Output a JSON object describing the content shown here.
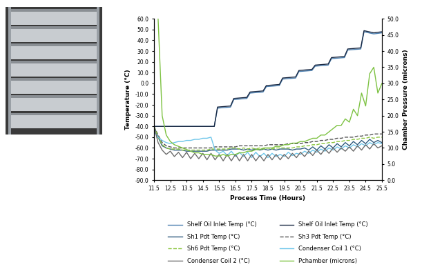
{
  "chart_data": {
    "type": "line",
    "xlabel": "Process Time (Hours)",
    "ylabel": "Temperature (°C)",
    "y2label": "Chamber Pressure (microns)",
    "xlim": [
      11.5,
      25.5
    ],
    "xticks": [
      11.5,
      12.5,
      13.5,
      14.5,
      15.5,
      16.5,
      17.5,
      18.5,
      19.5,
      20.5,
      21.5,
      22.5,
      23.5,
      24.5,
      25.5
    ],
    "ylim": [
      -90,
      60
    ],
    "yticks": [
      {
        "value": -90,
        "label": "-90.0"
      },
      {
        "value": -80,
        "label": "-80.0"
      },
      {
        "value": -70,
        "label": "-70.0"
      },
      {
        "value": -60,
        "label": "-60.0"
      },
      {
        "value": -50,
        "label": "-50.0"
      },
      {
        "value": -40,
        "label": "-40.0"
      },
      {
        "value": -30,
        "label": "-30.0"
      },
      {
        "value": -20,
        "label": "-20.0"
      },
      {
        "value": -10,
        "label": "-10.0"
      },
      {
        "value": 0,
        "label": "0.0"
      },
      {
        "value": 10,
        "label": "10.0"
      },
      {
        "value": 20,
        "label": "20.0"
      },
      {
        "value": 30,
        "label": "30.0"
      },
      {
        "value": 40,
        "label": "40.0"
      },
      {
        "value": 50,
        "label": "50.0"
      },
      {
        "value": 60,
        "label": "60.0"
      }
    ],
    "y2lim": [
      0,
      50
    ],
    "y2ticks": [
      {
        "value": 0,
        "label": "0.0"
      },
      {
        "value": 5,
        "label": "5.0"
      },
      {
        "value": 10,
        "label": "10.0"
      },
      {
        "value": 15,
        "label": "15.0"
      },
      {
        "value": 20,
        "label": "20.0"
      },
      {
        "value": 25,
        "label": "25.0"
      },
      {
        "value": 30,
        "label": "30.0"
      },
      {
        "value": 35,
        "label": "35.0"
      },
      {
        "value": 40,
        "label": "40.0"
      },
      {
        "value": 45,
        "label": "45.0"
      },
      {
        "value": 50,
        "label": "50.0"
      }
    ],
    "grid": false,
    "legend": "lower center",
    "x": [
      11.5,
      11.75,
      12.0,
      12.25,
      12.5,
      12.75,
      13.0,
      13.25,
      13.5,
      13.75,
      14.0,
      14.25,
      14.5,
      14.75,
      15.0,
      15.25,
      15.5,
      15.75,
      16.0,
      16.25,
      16.5,
      16.75,
      17.0,
      17.25,
      17.5,
      17.75,
      18.0,
      18.25,
      18.5,
      18.75,
      19.0,
      19.25,
      19.5,
      19.75,
      20.0,
      20.25,
      20.5,
      20.75,
      21.0,
      21.25,
      21.5,
      21.75,
      22.0,
      22.25,
      22.5,
      22.75,
      23.0,
      23.25,
      23.5,
      23.75,
      24.0,
      24.25,
      24.5,
      24.75,
      25.0,
      25.25,
      25.5
    ],
    "series": [
      {
        "name": "Shelf Oil Inlet Temp (°C)",
        "color": "#4a7fb0",
        "line_style": "solid",
        "x": [
          11.5,
          15.2,
          15.4,
          16.2,
          16.4,
          17.2,
          17.4,
          18.2,
          18.4,
          19.2,
          19.4,
          20.2,
          20.4,
          21.2,
          21.4,
          22.2,
          22.4,
          23.2,
          23.4,
          24.2,
          24.4,
          25.0,
          25.5
        ],
        "values": [
          -40,
          -40,
          -23,
          -22,
          -15,
          -14,
          -9,
          -8,
          -3,
          -2,
          4,
          5,
          11,
          12,
          16,
          17,
          23,
          24,
          31,
          32,
          48,
          46,
          47
        ]
      },
      {
        "name": "Shelf Oil Inlet Temp (°C)",
        "color": "#1b2a44",
        "line_style": "solid",
        "x": [
          11.5,
          15.2,
          15.4,
          16.2,
          16.4,
          17.2,
          17.4,
          18.2,
          18.4,
          19.2,
          19.4,
          20.2,
          20.4,
          21.2,
          21.4,
          22.2,
          22.4,
          23.2,
          23.4,
          24.2,
          24.4,
          25.0,
          25.5
        ],
        "values": [
          -40,
          -40,
          -22,
          -21,
          -14,
          -13,
          -8,
          -7,
          -2,
          -1,
          5,
          6,
          12,
          13,
          17,
          18,
          24,
          25,
          32,
          33,
          49,
          47,
          48
        ]
      },
      {
        "name": "Sh1 Pdt Temp (°C)",
        "color": "#2e5b7f",
        "line_style": "solid",
        "values": [
          -40,
          -50,
          -58,
          -60,
          -61,
          -62,
          -62,
          -62,
          -63,
          -63,
          -63,
          -63,
          -63,
          -63,
          -62,
          -62,
          -62,
          -62,
          -62,
          -61,
          -61,
          -61,
          -62,
          -61,
          -62,
          -61,
          -62,
          -61,
          -62,
          -61,
          -62,
          -61,
          -61,
          -61,
          -62,
          -61,
          -61,
          -60,
          -62,
          -59,
          -62,
          -58,
          -61,
          -57,
          -60,
          -56,
          -59,
          -55,
          -58,
          -54,
          -57,
          -53,
          -56,
          -52,
          -55,
          -53,
          -55
        ]
      },
      {
        "name": "Sh3 Pdt Temp (°C)",
        "color": "#555555",
        "line_style": "dashed",
        "values": [
          -40,
          -48,
          -55,
          -58,
          -59,
          -60,
          -60,
          -60,
          -60,
          -60,
          -60,
          -60,
          -60,
          -60,
          -60,
          -59,
          -59,
          -59,
          -59,
          -59,
          -59,
          -58,
          -58,
          -58,
          -58,
          -58,
          -58,
          -58,
          -57,
          -57,
          -57,
          -57,
          -57,
          -56,
          -56,
          -56,
          -56,
          -55,
          -55,
          -54,
          -54,
          -53,
          -53,
          -52,
          -52,
          -51,
          -51,
          -50,
          -50,
          -50,
          -49,
          -49,
          -48,
          -48,
          -47,
          -47,
          -47
        ]
      },
      {
        "name": "Sh6 Pdt Temp (°C)",
        "color": "#8cc63f",
        "line_style": "dashed",
        "values": [
          -40,
          -50,
          -57,
          -60,
          -61,
          -61,
          -61,
          -62,
          -62,
          -62,
          -62,
          -62,
          -62,
          -62,
          -61,
          -61,
          -61,
          -61,
          -61,
          -60,
          -60,
          -61,
          -60,
          -61,
          -60,
          -61,
          -60,
          -61,
          -60,
          -61,
          -60,
          -60,
          -60,
          -60,
          -60,
          -59,
          -59,
          -58,
          -58,
          -57,
          -57,
          -56,
          -56,
          -55,
          -55,
          -54,
          -54,
          -53,
          -53,
          -52,
          -52,
          -51,
          -51,
          -50,
          -51,
          -50,
          -50
        ]
      },
      {
        "name": "Condenser Coil 1 (°C)",
        "color": "#6ec6ea",
        "line_style": "solid",
        "values": [
          -45,
          -50,
          -53,
          -55,
          -56,
          -55,
          -54,
          -54,
          -53,
          -53,
          -52,
          -52,
          -51,
          -51,
          -50,
          -62,
          -65,
          -63,
          -67,
          -63,
          -68,
          -64,
          -68,
          -64,
          -69,
          -64,
          -68,
          -65,
          -69,
          -65,
          -68,
          -66,
          -68,
          -64,
          -67,
          -65,
          -66,
          -63,
          -65,
          -62,
          -64,
          -61,
          -63,
          -60,
          -62,
          -59,
          -61,
          -58,
          -60,
          -57,
          -59,
          -56,
          -58,
          -55,
          -57,
          -55,
          -56
        ]
      },
      {
        "name": "Condenser Coil 2 (°C)",
        "color": "#6d6d6d",
        "line_style": "solid",
        "values": [
          -40,
          -55,
          -62,
          -66,
          -63,
          -68,
          -64,
          -69,
          -64,
          -70,
          -65,
          -70,
          -65,
          -71,
          -65,
          -71,
          -66,
          -72,
          -66,
          -72,
          -66,
          -72,
          -66,
          -72,
          -66,
          -72,
          -67,
          -72,
          -66,
          -71,
          -66,
          -71,
          -66,
          -70,
          -65,
          -69,
          -64,
          -68,
          -63,
          -67,
          -62,
          -66,
          -61,
          -65,
          -60,
          -64,
          -60,
          -63,
          -59,
          -63,
          -58,
          -62,
          -57,
          -61,
          -56,
          -60,
          -58
        ]
      },
      {
        "name": "Pchamber (microns)",
        "color": "#7dc242",
        "line_style": "solid",
        "axis": "y2",
        "values": [
          null,
          50,
          20,
          14,
          12,
          11,
          10.5,
          10,
          9.5,
          9,
          8.5,
          8.5,
          8,
          8,
          8,
          7.5,
          7.5,
          8,
          7.5,
          8,
          8,
          8.5,
          8.5,
          9,
          9,
          9.5,
          9.5,
          10,
          10,
          10,
          10.5,
          10.5,
          11,
          11,
          11.5,
          11.5,
          12,
          12,
          12.5,
          13,
          13,
          14,
          14,
          15,
          16,
          17,
          17,
          19,
          18,
          22,
          20,
          27,
          23,
          33,
          35,
          27,
          30
        ]
      }
    ]
  }
}
